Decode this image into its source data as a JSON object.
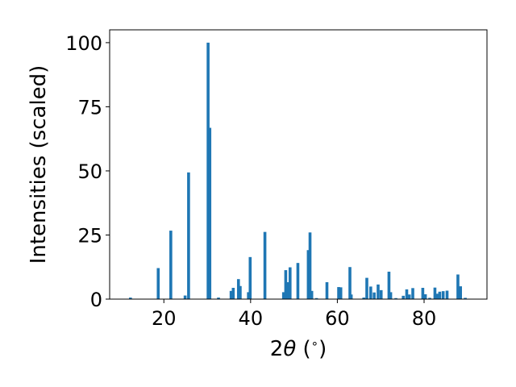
{
  "chart_data": {
    "type": "bar",
    "title": "",
    "xlabel": "2θ (°)",
    "xlabel_parts": {
      "pre": "2",
      "theta": "θ",
      "post": " (",
      "degree": "∘",
      "close": ")"
    },
    "ylabel": "Intensities (scaled)",
    "xlim": [
      7.5,
      94.5
    ],
    "ylim": [
      0,
      105
    ],
    "xticks": [
      20,
      40,
      60,
      80
    ],
    "yticks": [
      0,
      25,
      50,
      75,
      100
    ],
    "bar_color": "#1f77b4",
    "grid": false,
    "legend": "none",
    "x": [
      12.3,
      18.7,
      21.6,
      24.9,
      25.7,
      30.2,
      30.6,
      32.6,
      35.5,
      36.0,
      37.2,
      37.6,
      39.5,
      39.9,
      43.3,
      47.6,
      48.1,
      48.6,
      49.1,
      50.9,
      53.3,
      53.7,
      54.1,
      55.2,
      57.6,
      60.3,
      60.8,
      62.9,
      63.2,
      66.1,
      66.8,
      67.7,
      68.5,
      69.4,
      70.1,
      71.9,
      72.3,
      73.5,
      75.2,
      76.0,
      76.6,
      77.4,
      79.7,
      80.3,
      81.3,
      82.5,
      83.0,
      83.6,
      84.4,
      85.3,
      87.8,
      88.4,
      89.5
    ],
    "values": [
      0.6,
      12.1,
      26.7,
      1.4,
      49.4,
      100.0,
      66.8,
      0.6,
      3.2,
      4.4,
      7.8,
      5.1,
      2.7,
      16.4,
      26.2,
      2.7,
      11.3,
      6.6,
      12.4,
      14.1,
      19.1,
      26.0,
      3.2,
      0.4,
      6.6,
      4.7,
      4.6,
      12.5,
      1.8,
      0.6,
      8.3,
      4.9,
      2.6,
      5.7,
      3.5,
      10.7,
      2.7,
      0.4,
      1.3,
      3.8,
      1.8,
      4.3,
      4.4,
      1.9,
      0.5,
      4.5,
      2.1,
      2.9,
      3.1,
      3.3,
      9.6,
      5.0,
      0.5
    ]
  }
}
